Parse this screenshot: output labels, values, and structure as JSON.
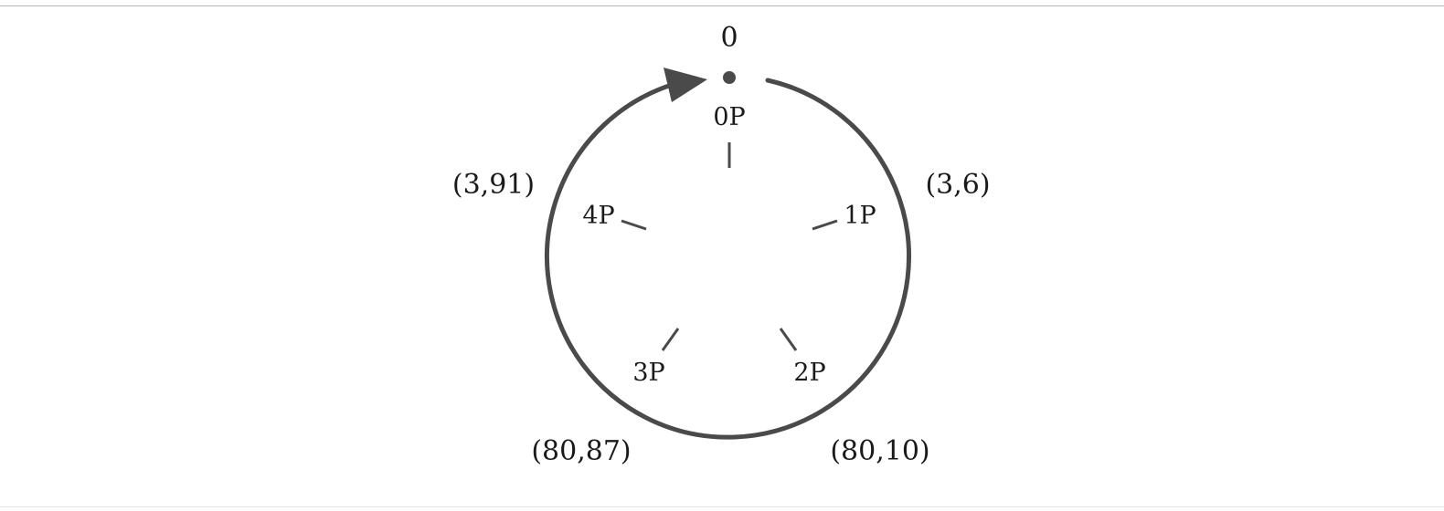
{
  "diagram": {
    "start_label": "0",
    "positions": [
      {
        "label": "0P"
      },
      {
        "label": "1P"
      },
      {
        "label": "2P"
      },
      {
        "label": "3P"
      },
      {
        "label": "4P"
      }
    ],
    "arc_labels": [
      {
        "label": "(3,6)"
      },
      {
        "label": "(80,10)"
      },
      {
        "label": "(80,87)"
      },
      {
        "label": "(3,91)"
      }
    ],
    "colors": {
      "stroke": "#4a4a4a",
      "text": "#1a1a1a"
    }
  }
}
